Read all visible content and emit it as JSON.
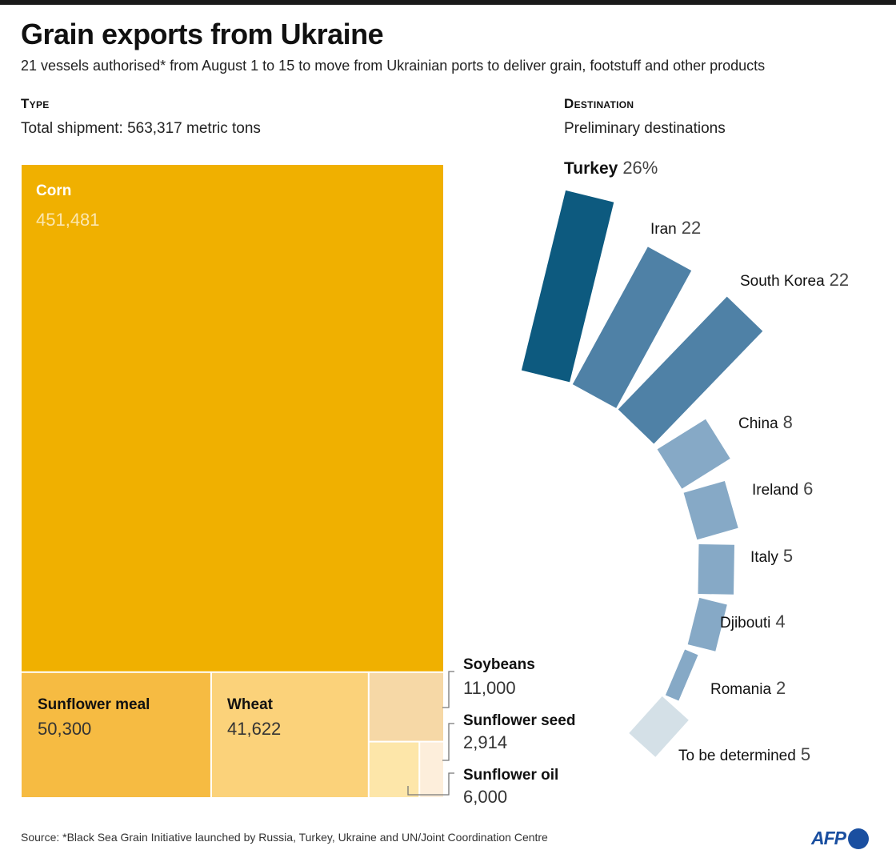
{
  "header": {
    "title": "Grain exports from Ukraine",
    "subtitle": "21 vessels authorised* from August 1 to 15 to move from Ukrainian ports to deliver grain, footstuff and other products"
  },
  "type_section": {
    "heading": "Type",
    "subheading": "Total shipment: 563,317 metric tons"
  },
  "destination_section": {
    "heading": "Destination",
    "subheading": "Preliminary destinations"
  },
  "footer": {
    "source": "Source: *Black Sea Grain Initiative launched by Russia, Turkey, Ukraine and UN/Joint Coordination Centre",
    "logo": "AFP"
  },
  "chart_data": [
    {
      "type": "treemap",
      "title": "Type",
      "unit": "metric tons",
      "total": 563317,
      "items": [
        {
          "label": "Corn",
          "value": 451481,
          "display": "451,481",
          "color": "#f0b000"
        },
        {
          "label": "Sunflower meal",
          "value": 50300,
          "display": "50,300",
          "color": "#f6bb42"
        },
        {
          "label": "Wheat",
          "value": 41622,
          "display": "41,622",
          "color": "#fbd27a"
        },
        {
          "label": "Soybeans",
          "value": 11000,
          "display": "11,000",
          "color": "#f6d8a6"
        },
        {
          "label": "Sunflower seed",
          "value": 2914,
          "display": "2,914",
          "color": "#fdeedb"
        },
        {
          "label": "Sunflower oil",
          "value": 6000,
          "display": "6,000",
          "color": "#fde6a9"
        }
      ]
    },
    {
      "type": "radial-bar",
      "title": "Destination",
      "unit": "%",
      "items": [
        {
          "label": "Turkey",
          "value": 26,
          "display": "26%",
          "color": "#0d5a7f"
        },
        {
          "label": "Iran",
          "value": 22,
          "display": "22",
          "color": "#4f81a6"
        },
        {
          "label": "South Korea",
          "value": 22,
          "display": "22",
          "color": "#4f81a6"
        },
        {
          "label": "China",
          "value": 8,
          "display": "8",
          "color": "#86a9c6"
        },
        {
          "label": "Ireland",
          "value": 6,
          "display": "6",
          "color": "#86a9c6"
        },
        {
          "label": "Italy",
          "value": 5,
          "display": "5",
          "color": "#86a9c6"
        },
        {
          "label": "Djibouti",
          "value": 4,
          "display": "4",
          "color": "#86a9c6"
        },
        {
          "label": "Romania",
          "value": 2,
          "display": "2",
          "color": "#86a9c6"
        },
        {
          "label": "To be determined",
          "value": 5,
          "display": "5",
          "color": "#d4e0e7"
        }
      ]
    }
  ]
}
